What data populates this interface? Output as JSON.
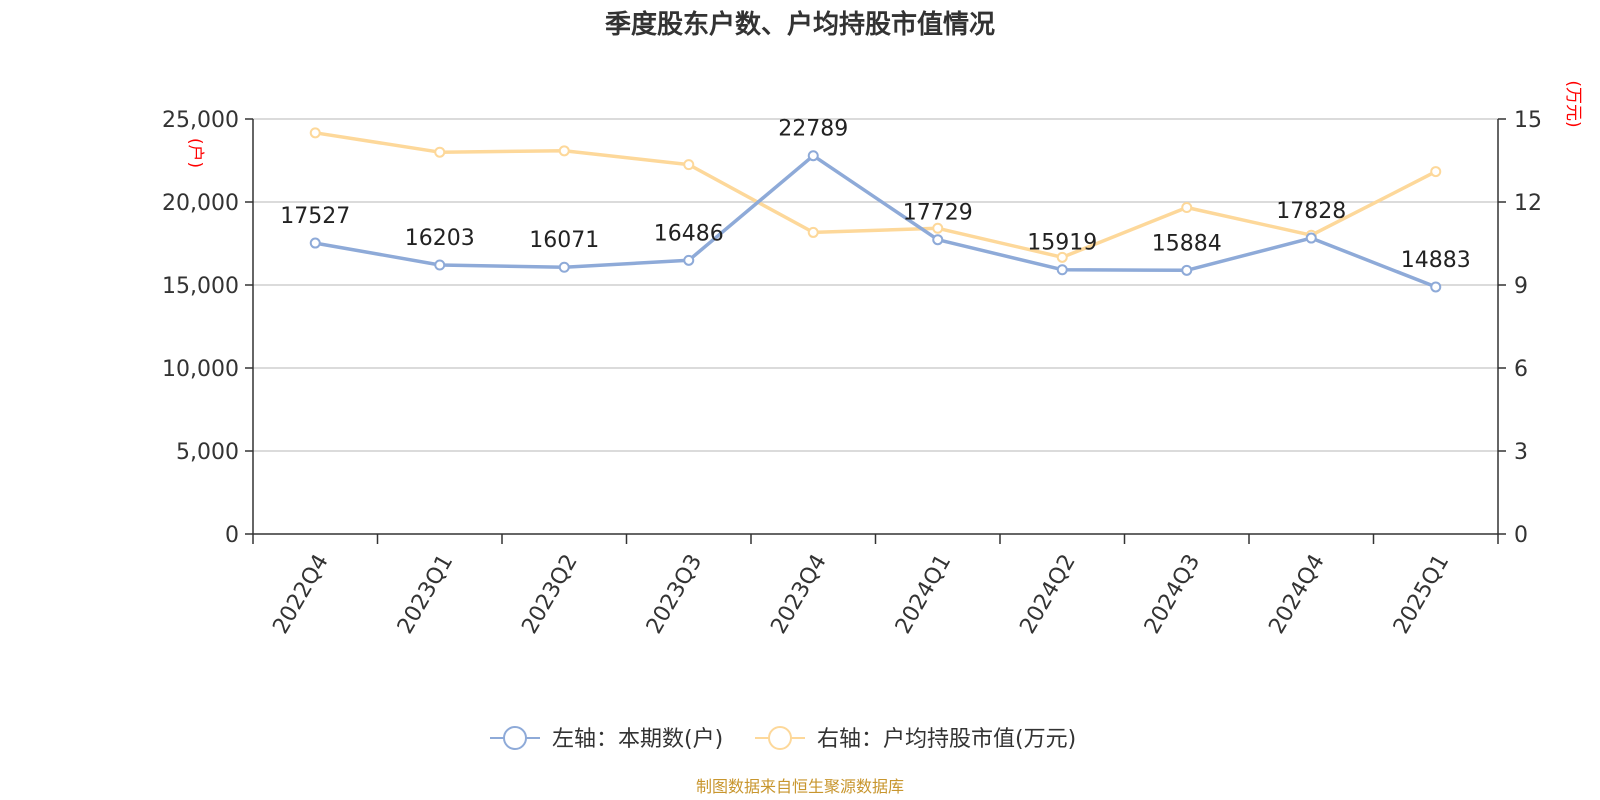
{
  "chart_data": {
    "type": "line",
    "title": "季度股东户数、户均持股市值情况",
    "categories": [
      "2022Q4",
      "2023Q1",
      "2023Q2",
      "2023Q3",
      "2023Q4",
      "2024Q1",
      "2024Q2",
      "2024Q3",
      "2024Q4",
      "2025Q1"
    ],
    "left_axis": {
      "unit": "(户)",
      "ylim": [
        0,
        25000
      ],
      "ticks": [
        "0",
        "5,000",
        "10,000",
        "15,000",
        "20,000",
        "25,000"
      ],
      "tick_values": [
        0,
        5000,
        10000,
        15000,
        20000,
        25000
      ]
    },
    "right_axis": {
      "unit": "(万元)",
      "ylim": [
        0,
        15
      ],
      "ticks": [
        "0",
        "3",
        "6",
        "9",
        "12",
        "15"
      ],
      "tick_values": [
        0,
        3,
        6,
        9,
        12,
        15
      ]
    },
    "series": [
      {
        "name": "左轴：本期数(户)",
        "axis": "left",
        "color": "#8eaad8",
        "values": [
          17527,
          16203,
          16071,
          16486,
          22789,
          17729,
          15919,
          15884,
          17828,
          14883
        ],
        "labels": [
          "17527",
          "16203",
          "16071",
          "16486",
          "22789",
          "17729",
          "15919",
          "15884",
          "17828",
          "14883"
        ]
      },
      {
        "name": "右轴：户均持股市值(万元)",
        "axis": "right",
        "color": "#fdd89a",
        "values": [
          14.5,
          13.8,
          13.85,
          13.35,
          10.9,
          11.05,
          10.0,
          11.8,
          10.8,
          13.1
        ]
      }
    ],
    "grid": true,
    "legend_position": "bottom-center"
  },
  "source_text": "制图数据来自恒生聚源数据库",
  "source_color": "#c8962e"
}
